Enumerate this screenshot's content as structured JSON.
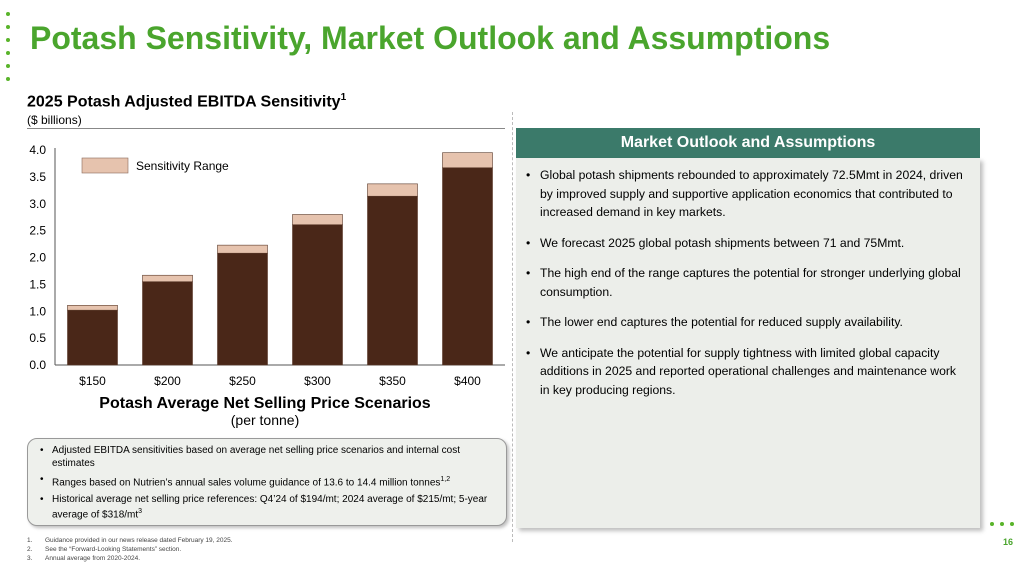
{
  "slide": {
    "title": "Potash Sensitivity, Market Outlook and Assumptions",
    "page_number": "16"
  },
  "chart": {
    "title": "2025 Potash Adjusted EBITDA Sensitivity",
    "title_footnote": "1",
    "subtitle": "($ billions)",
    "xlabel": "Potash Average Net Selling Price Scenarios",
    "xlabel_sub": "(per tonne)",
    "legend_label": "Sensitivity Range"
  },
  "chart_data": {
    "type": "bar",
    "stacked": true,
    "categories": [
      "$150",
      "$200",
      "$250",
      "$300",
      "$350",
      "$400"
    ],
    "series": [
      {
        "name": "",
        "values": [
          1.02,
          1.55,
          2.08,
          2.61,
          3.14,
          3.67
        ],
        "color": "#4a2718"
      },
      {
        "name": "Sensitivity Range",
        "values": [
          0.09,
          0.12,
          0.15,
          0.19,
          0.23,
          0.28
        ],
        "color": "#e6c3ae"
      }
    ],
    "yticks": [
      "0.0",
      "0.5",
      "1.0",
      "1.5",
      "2.0",
      "2.5",
      "3.0",
      "3.5",
      "4.0"
    ],
    "ylim": [
      0,
      4.0
    ],
    "legend_position": "top-left",
    "grid": false
  },
  "notes": [
    {
      "text": "Adjusted EBITDA sensitivities based on average net selling price scenarios and internal cost estimates",
      "sup": ""
    },
    {
      "text": "Ranges based on Nutrien’s annual sales volume guidance of 13.6 to 14.4 million tonnes",
      "sup": "1,2"
    },
    {
      "text": "Historical average net selling price references: Q4’24 of $194/mt; 2024 average of $215/mt; 5-year average of $318/mt",
      "sup": "3"
    }
  ],
  "footnotes": [
    {
      "num": "1.",
      "text": "Guidance provided in our news release dated February 19, 2025."
    },
    {
      "num": "2.",
      "text": "See the “Forward-Looking Statements” section."
    },
    {
      "num": "3.",
      "text": "Annual average from 2020-2024."
    }
  ],
  "outlook": {
    "header": "Market Outlook and Assumptions",
    "bullets": [
      "Global potash shipments rebounded to approximately 72.5Mmt in 2024, driven by improved supply and supportive application economics that contributed to increased demand in key markets.",
      "We forecast 2025 global potash shipments between 71 and 75Mmt.",
      "The high end of the range captures the potential for stronger underlying global consumption.",
      "The lower end captures the potential for reduced supply availability.",
      "We anticipate the potential for supply tightness with limited global capacity additions in 2025 and reported operational challenges and maintenance work in key producing regions."
    ]
  },
  "colors": {
    "brand_green": "#4aa52d",
    "header_teal": "#3b7a6a",
    "bar_base": "#4a2718",
    "bar_range": "#e6c3ae"
  }
}
